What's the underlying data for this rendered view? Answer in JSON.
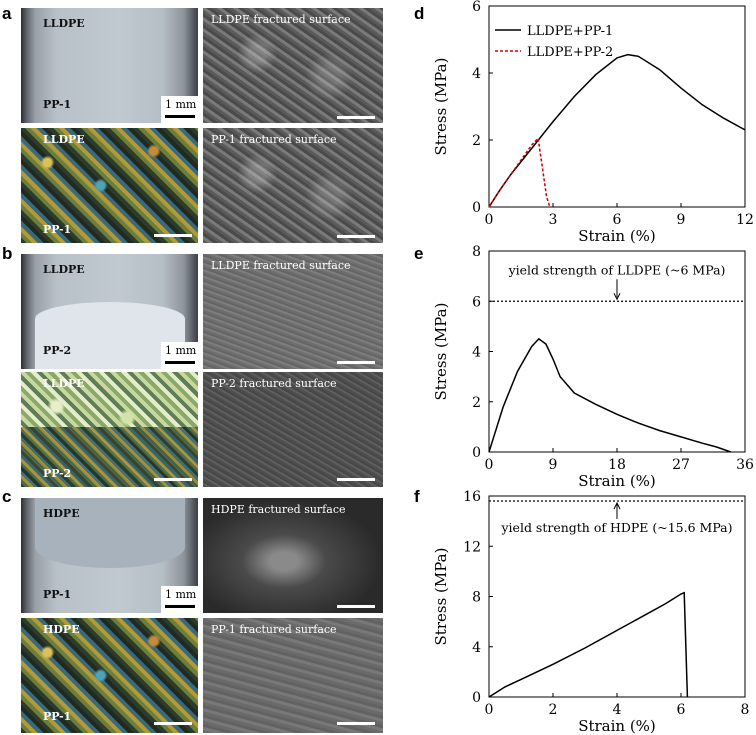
{
  "panel_letters": {
    "a": "a",
    "b": "b",
    "c": "c",
    "d": "d",
    "e": "e",
    "f": "f"
  },
  "images": {
    "a_optical": {
      "top": "LLDPE",
      "bottom": "PP-1",
      "scale": "1 mm"
    },
    "a_sem_top": {
      "label": "LLDPE fractured surface"
    },
    "a_polar": {
      "top": "LLDPE",
      "bottom": "PP-1"
    },
    "a_sem_bottom": {
      "label": "PP-1 fractured surface"
    },
    "b_optical": {
      "top": "LLDPE",
      "bottom": "PP-2",
      "scale": "1 mm"
    },
    "b_sem_top": {
      "label": "LLDPE fractured surface"
    },
    "b_polar": {
      "top": "LLDPE",
      "bottom": "PP-2"
    },
    "b_sem_bottom": {
      "label": "PP-2 fractured surface"
    },
    "c_optical": {
      "top": "HDPE",
      "bottom": "PP-1",
      "scale": "1 mm"
    },
    "c_sem_top": {
      "label": "HDPE fractured surface"
    },
    "c_polar": {
      "top": "HDPE",
      "bottom": "PP-1"
    },
    "c_sem_bottom": {
      "label": "PP-1 fractured surface"
    }
  },
  "chart_data": [
    {
      "id": "d",
      "type": "line",
      "xlabel": "Strain (%)",
      "ylabel": "Stress (MPa)",
      "xlim": [
        0,
        12
      ],
      "ylim": [
        0,
        6
      ],
      "xticks": [
        0,
        3,
        6,
        9,
        12
      ],
      "yticks": [
        0,
        2,
        4,
        6
      ],
      "legend_position": "top-left",
      "series": [
        {
          "name": "LLDPE+PP-1",
          "color": "#000000",
          "dash": "solid",
          "x": [
            0,
            0.5,
            1,
            2,
            3,
            4,
            5,
            6,
            6.5,
            7,
            8,
            9,
            10,
            11,
            12
          ],
          "y": [
            0,
            0.5,
            0.95,
            1.75,
            2.55,
            3.3,
            3.95,
            4.45,
            4.55,
            4.5,
            4.1,
            3.55,
            3.05,
            2.65,
            2.3
          ]
        },
        {
          "name": "LLDPE+PP-2",
          "color": "#d00000",
          "dash": "dashed",
          "x": [
            0,
            0.5,
            1,
            1.5,
            2,
            2.3,
            2.5,
            2.7,
            2.85
          ],
          "y": [
            0,
            0.5,
            0.95,
            1.4,
            1.85,
            2.05,
            1.2,
            0.3,
            0
          ]
        }
      ],
      "annotations": []
    },
    {
      "id": "e",
      "type": "line",
      "xlabel": "Strain (%)",
      "ylabel": "Stress (MPa)",
      "xlim": [
        0,
        36
      ],
      "ylim": [
        0,
        8
      ],
      "xticks": [
        0,
        9,
        18,
        27,
        36
      ],
      "yticks": [
        0,
        2,
        4,
        6,
        8
      ],
      "series": [
        {
          "color": "#000000",
          "dash": "solid",
          "x": [
            0,
            2,
            4,
            6,
            7,
            8,
            9,
            10,
            12,
            15,
            18,
            21,
            24,
            27,
            30,
            32,
            34
          ],
          "y": [
            0,
            1.8,
            3.2,
            4.2,
            4.5,
            4.3,
            3.7,
            3.0,
            2.35,
            1.9,
            1.5,
            1.15,
            0.85,
            0.6,
            0.35,
            0.2,
            0
          ]
        }
      ],
      "reference_line": {
        "y": 6,
        "label": "yield strength of LLDPE (~6 MPa)"
      }
    },
    {
      "id": "f",
      "type": "line",
      "xlabel": "Strain (%)",
      "ylabel": "Stress (MPa)",
      "xlim": [
        0,
        8
      ],
      "ylim": [
        0,
        16
      ],
      "xticks": [
        0,
        2,
        4,
        6,
        8
      ],
      "yticks": [
        0,
        4,
        8,
        12,
        16
      ],
      "series": [
        {
          "color": "#000000",
          "dash": "solid",
          "x": [
            0,
            0.5,
            1,
            2,
            3,
            4,
            5,
            5.5,
            6,
            6.1,
            6.2
          ],
          "y": [
            0,
            0.8,
            1.4,
            2.6,
            3.9,
            5.3,
            6.7,
            7.4,
            8.2,
            8.3,
            0
          ]
        }
      ],
      "reference_line": {
        "y": 15.6,
        "label": "yield strength of HDPE (~15.6 MPa)"
      }
    }
  ]
}
